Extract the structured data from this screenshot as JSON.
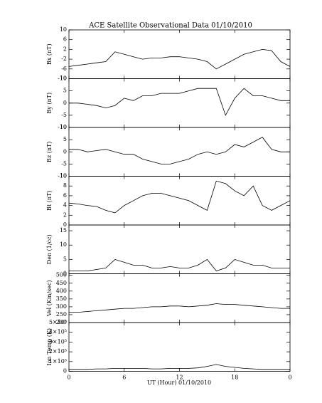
{
  "title": "ACE Satellite Observational Data   01/10/2010",
  "xlabel": "UT (Hour)  01/10/2010",
  "xlim": [
    0,
    24
  ],
  "xticks": [
    0,
    6,
    12,
    18,
    {
      "value": 24,
      "label": "0"
    }
  ],
  "x": [
    0,
    1,
    2,
    3,
    4,
    5,
    6,
    7,
    8,
    9,
    10,
    11,
    12,
    13,
    14,
    15,
    16,
    17,
    18,
    19,
    20,
    21,
    22,
    23,
    24
  ],
  "chart_data": [
    {
      "type": "line",
      "ylabel": "Bx (nT)",
      "color": "#000000",
      "ylim": [
        -10,
        10
      ],
      "yticks": [
        -10,
        -6,
        -2,
        2,
        6,
        10
      ],
      "values": [
        -5,
        -4.5,
        -4,
        -3.5,
        -3,
        1,
        0,
        -1,
        -2,
        -1.5,
        -1.5,
        -1,
        -1,
        -1.5,
        -2,
        -3,
        -6,
        -4,
        -2,
        0,
        1,
        2,
        1.5,
        -3,
        -5
      ]
    },
    {
      "type": "line",
      "ylabel": "By (nT)",
      "color": "#000000",
      "ylim": [
        -10,
        10
      ],
      "yticks": [
        -10,
        -5,
        0,
        5,
        10
      ],
      "values": [
        0,
        0,
        -0.5,
        -1,
        -2,
        -1,
        2,
        1,
        3,
        3,
        4,
        4,
        4,
        5,
        6,
        6,
        6,
        -5,
        2,
        6,
        3,
        3,
        2,
        1,
        1
      ]
    },
    {
      "type": "line",
      "ylabel": "Bz (nT)",
      "color": "#000000",
      "ylim": [
        -10,
        10
      ],
      "yticks": [
        -10,
        -5,
        0,
        5,
        10
      ],
      "values": [
        1,
        1,
        0,
        0.5,
        1,
        0,
        -1,
        -1,
        -3,
        -4,
        -5,
        -5,
        -4,
        -3,
        -1,
        0,
        -1,
        0,
        3,
        2,
        4,
        6,
        1,
        0,
        0
      ]
    },
    {
      "type": "line",
      "ylabel": "Bt (nT)",
      "color": "#000000",
      "ylim": [
        0,
        10
      ],
      "yticks": [
        0,
        2,
        4,
        6,
        8,
        10
      ],
      "values": [
        4.5,
        4.3,
        4,
        3.8,
        3,
        2.5,
        4,
        5,
        6,
        6.5,
        6.5,
        6,
        5.5,
        5,
        4,
        3,
        9,
        8.5,
        7,
        6,
        8,
        4,
        3,
        4,
        5
      ]
    },
    {
      "type": "line",
      "ylabel": "Den (1/cc)",
      "color": "#000000",
      "ylim": [
        0,
        17
      ],
      "yticks": [
        0,
        5,
        10,
        15
      ],
      "values": [
        1,
        1,
        1,
        1.5,
        2,
        5,
        4,
        3,
        3,
        2,
        2,
        2.5,
        2,
        2,
        3,
        5,
        1,
        2,
        5,
        4,
        3,
        3,
        2,
        2,
        2
      ]
    },
    {
      "type": "line",
      "ylabel": "Vel (Km/sec)",
      "color": "#000000",
      "ylim": [
        200,
        510
      ],
      "yticks": [
        200,
        250,
        300,
        350,
        400,
        450,
        500
      ],
      "values": [
        265,
        265,
        270,
        275,
        280,
        285,
        290,
        290,
        295,
        300,
        300,
        305,
        305,
        300,
        305,
        310,
        320,
        315,
        315,
        310,
        305,
        300,
        295,
        290,
        290
      ]
    },
    {
      "type": "line",
      "ylabel": "Ion Temp (K)",
      "color": "#000000",
      "ylim": [
        0,
        500000
      ],
      "yticks": [
        0,
        {
          "value": 100000,
          "label": "1×10⁵"
        },
        {
          "value": 200000,
          "label": "2×10⁵"
        },
        {
          "value": 300000,
          "label": "3×10⁵"
        },
        {
          "value": 400000,
          "label": "4×10⁵"
        },
        {
          "value": 500000,
          "label": "5×10⁵"
        }
      ],
      "values": [
        20000,
        20000,
        20000,
        25000,
        25000,
        30000,
        30000,
        30000,
        30000,
        25000,
        25000,
        30000,
        30000,
        30000,
        35000,
        50000,
        70000,
        50000,
        40000,
        30000,
        25000,
        20000,
        20000,
        20000,
        20000
      ]
    }
  ]
}
